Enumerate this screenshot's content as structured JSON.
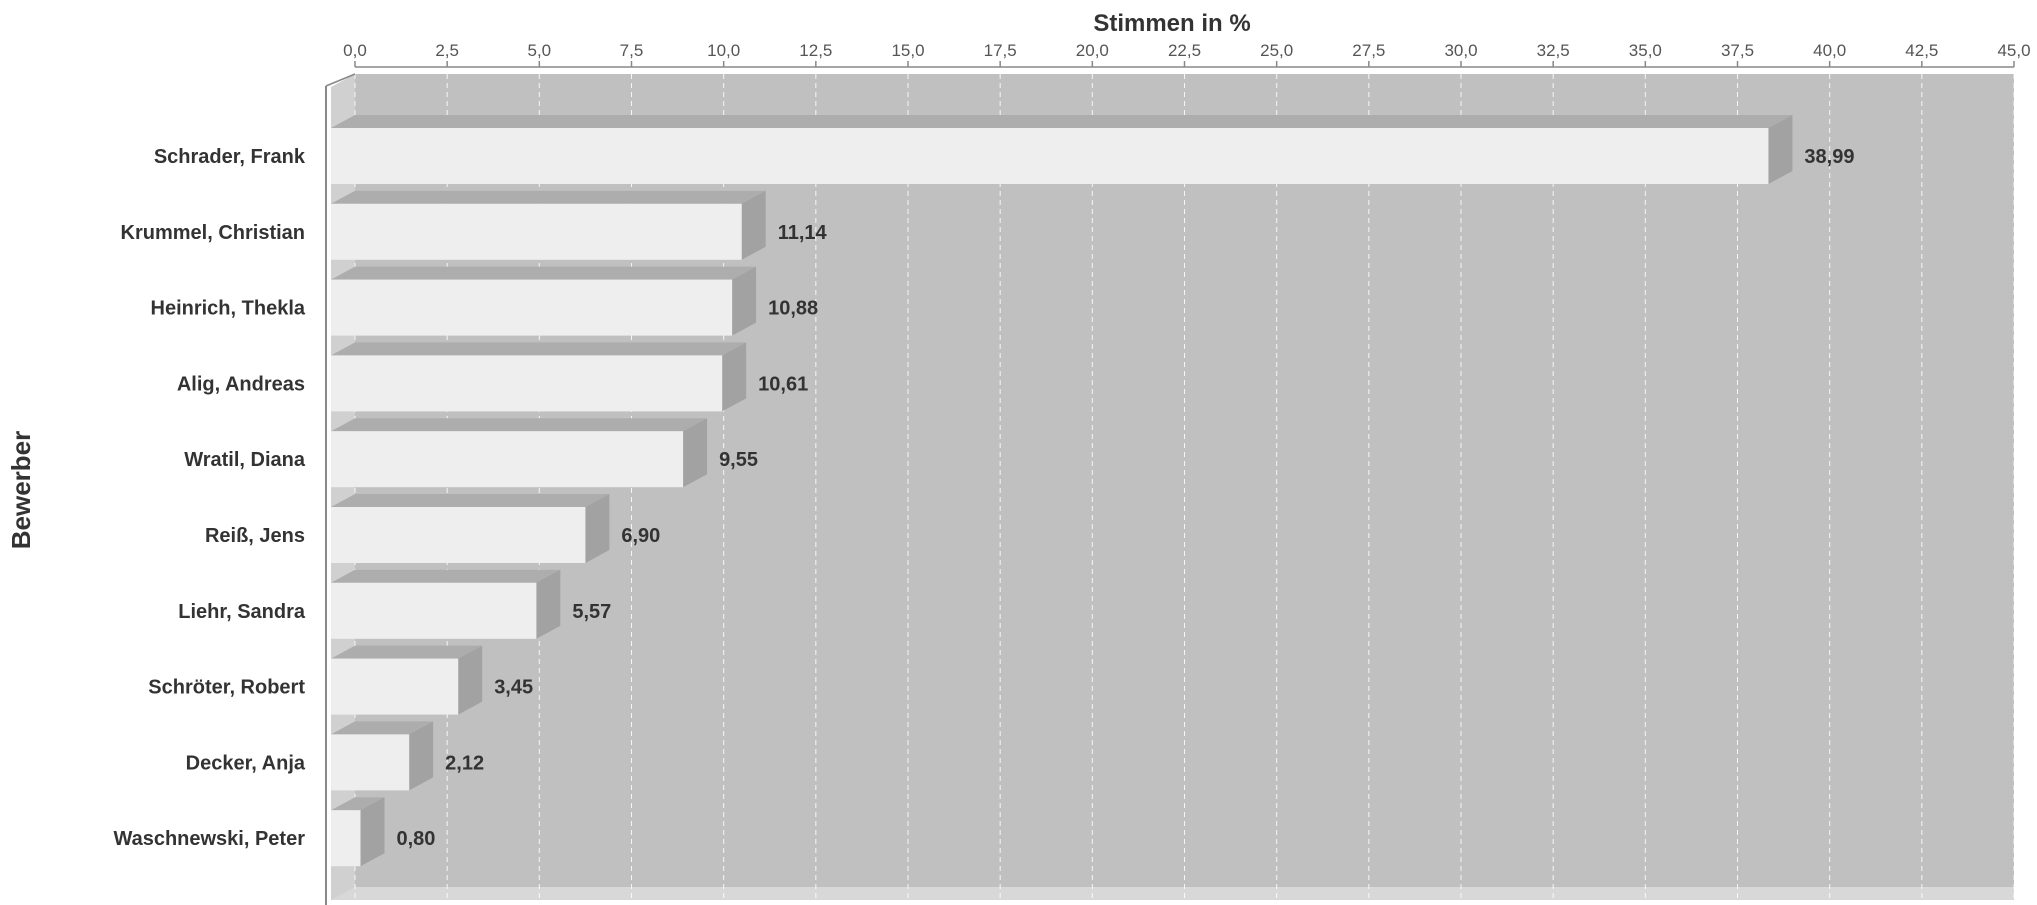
{
  "chart_data": {
    "type": "bar",
    "orientation": "horizontal",
    "title": "Stimmen in %",
    "ylabel": "Bewerber",
    "xlim": [
      0,
      45
    ],
    "x_ticks": [
      "0,0",
      "2,5",
      "5,0",
      "7,5",
      "10,0",
      "12,5",
      "15,0",
      "17,5",
      "20,0",
      "22,5",
      "25,0",
      "27,5",
      "30,0",
      "32,5",
      "35,0",
      "37,5",
      "40,0",
      "42,5",
      "45,0"
    ],
    "categories": [
      "Schrader, Frank",
      "Krummel, Christian",
      "Heinrich, Thekla",
      "Alig, Andreas",
      "Wratil, Diana",
      "Reiß, Jens",
      "Liehr, Sandra",
      "Schröter, Robert",
      "Decker, Anja",
      "Waschnewski, Peter"
    ],
    "values": [
      38.99,
      11.14,
      10.88,
      10.61,
      9.55,
      6.9,
      5.57,
      3.45,
      2.12,
      0.8
    ],
    "value_labels": [
      "38,99",
      "11,14",
      "10,88",
      "10,61",
      "9,55",
      "6,90",
      "5,57",
      "3,45",
      "2,12",
      "0,80"
    ],
    "grid": true,
    "colors": {
      "plot_bg": "#c0c0c0",
      "bar": "#eeeeee",
      "bar_shadow": "#adadad",
      "floor": "#d8d8d8"
    }
  }
}
